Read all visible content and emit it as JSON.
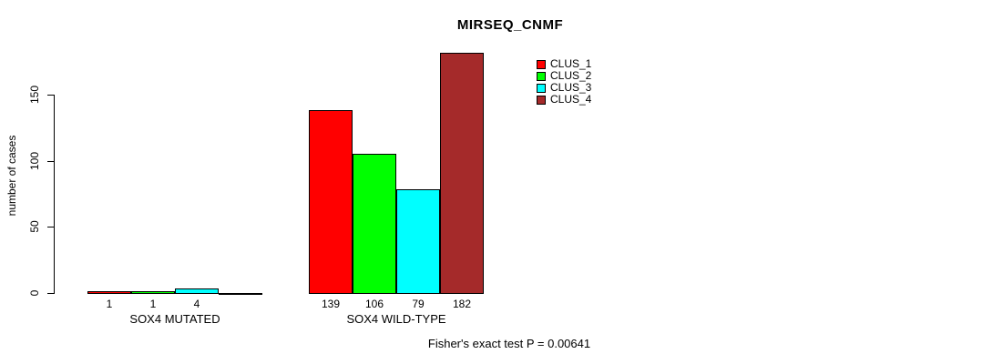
{
  "chart_data": {
    "type": "bar",
    "title": "MIRSEQ_CNMF",
    "xlabel": "",
    "ylabel": "number of cases",
    "yticks": [
      0,
      50,
      100,
      150
    ],
    "ylim": [
      0,
      182
    ],
    "grid": false,
    "legend_position": "top-right",
    "series": [
      {
        "name": "CLUS_1",
        "color": "#ff0000"
      },
      {
        "name": "CLUS_2",
        "color": "#00ff00"
      },
      {
        "name": "CLUS_3",
        "color": "#00ffff"
      },
      {
        "name": "CLUS_4",
        "color": "#a52a2a"
      }
    ],
    "groups": [
      {
        "label": "SOX4 MUTATED",
        "values": [
          1,
          1,
          4,
          0
        ],
        "bar_labels": [
          "1",
          "1",
          "4",
          ""
        ]
      },
      {
        "label": "SOX4 WILD-TYPE",
        "values": [
          139,
          106,
          79,
          182
        ],
        "bar_labels": [
          "139",
          "106",
          "79",
          "182"
        ]
      }
    ],
    "annotation": "Fisher's exact test P = 0.00641"
  }
}
